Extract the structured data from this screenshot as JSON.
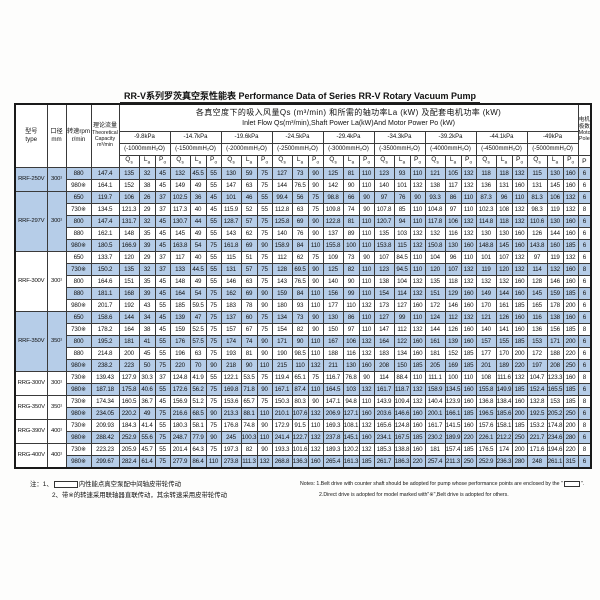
{
  "title": "RR-V系列罗茨真空泵性能表  Performance Data of Series RR-V Rotary Vacuum Pump",
  "header": {
    "model_cn": "型号",
    "model_en": "type",
    "bore_cn": "口径",
    "bore_en": "mm",
    "speed_cn": "转速rpm",
    "speed_en": "r/min",
    "cap_cn": "理论流量",
    "cap_en1": "Theoretical",
    "cap_en2": "Capacity",
    "cap_en3": "m³/min",
    "big_cn": "各真空度下的吸入风量Qs (m³/min) 和所需的轴功率La (kW) 及配套电机功率 (kW)",
    "big_en": "Inlet Flow Qs(m³/min),Shaft Power La(kW)And Motor Power Po (kW)",
    "pole_cn1": "电机",
    "pole_cn2": "极数",
    "pole_en1": "Motor",
    "pole_en2": "Pole"
  },
  "sub": {
    "qs_main": "Q",
    "qs_sub": "s",
    "la_main": "L",
    "la_sub": "a",
    "po_main": "P",
    "po_sub": "o",
    "p": "P"
  },
  "pressures": [
    {
      "kpa": "-9.8kPa",
      "mm": "(-1000mmH₂O)"
    },
    {
      "kpa": "-14.7kPa",
      "mm": "(-1500mmH₂O)"
    },
    {
      "kpa": "-19.6kPa",
      "mm": "(-2000mmH₂O)"
    },
    {
      "kpa": "-24.5kPa",
      "mm": "(-2500mmH₂O)"
    },
    {
      "kpa": "-29.4kPa",
      "mm": "(-3000mmH₂O)"
    },
    {
      "kpa": "-34.3kPa",
      "mm": "(-3500mmH₂O)"
    },
    {
      "kpa": "-39.2kPa",
      "mm": "(-4000mmH₂O)"
    },
    {
      "kpa": "-44.1kPa",
      "mm": "(-4500mmH₂O)"
    },
    {
      "kpa": "-49kPa",
      "mm": "(-5000mmH₂O)"
    }
  ],
  "groups": [
    {
      "model": "RRF-250V",
      "bore": "300¹",
      "rows": [
        {
          "speed": "880",
          "cap": "147.4",
          "c": [
            "135",
            "32",
            "45",
            "132",
            "45.5",
            "55",
            "130",
            "59",
            "75",
            "127",
            "73",
            "90",
            "125",
            "81",
            "110",
            "123",
            "93",
            "110",
            "121",
            "105",
            "132",
            "118",
            "118",
            "132",
            "115",
            "130",
            "160"
          ],
          "p": "6"
        },
        {
          "speed": "980※",
          "cap": "164.1",
          "c": [
            "152",
            "38",
            "45",
            "149",
            "49",
            "55",
            "147",
            "63",
            "75",
            "144",
            "76.5",
            "90",
            "142",
            "90",
            "110",
            "140",
            "101",
            "132",
            "138",
            "117",
            "132",
            "136",
            "131",
            "160",
            "131",
            "145",
            "160"
          ],
          "p": "6"
        }
      ]
    },
    {
      "model": "RRF-297V",
      "bore": "300¹",
      "rows": [
        {
          "speed": "650",
          "cap": "119.7",
          "c": [
            "106",
            "26",
            "37",
            "102.5",
            "36",
            "45",
            "101",
            "46",
            "55",
            "99.4",
            "56",
            "75",
            "98.8",
            "66",
            "90",
            "97",
            "76",
            "90",
            "93.3",
            "86",
            "110",
            "87.3",
            "96",
            "110",
            "81.3",
            "106",
            "132"
          ],
          "p": "6"
        },
        {
          "speed": "730※",
          "cap": "134.5",
          "c": [
            "121.3",
            "29",
            "37",
            "117.3",
            "40",
            "45",
            "115.9",
            "52",
            "55",
            "112.8",
            "63",
            "75",
            "109.8",
            "74",
            "90",
            "107.8",
            "85",
            "110",
            "104.8",
            "97",
            "110",
            "102.3",
            "108",
            "132",
            "98.3",
            "119",
            "132"
          ],
          "p": "8"
        },
        {
          "speed": "800",
          "cap": "147.4",
          "c": [
            "131.7",
            "32",
            "45",
            "130.7",
            "44",
            "55",
            "128.7",
            "57",
            "75",
            "125.8",
            "69",
            "90",
            "122.8",
            "81",
            "110",
            "120.7",
            "94",
            "110",
            "117.8",
            "106",
            "132",
            "114.8",
            "118",
            "132",
            "110.6",
            "130",
            "160"
          ],
          "p": "6"
        },
        {
          "speed": "880",
          "cap": "162.1",
          "c": [
            "148",
            "35",
            "45",
            "145",
            "49",
            "55",
            "143",
            "62",
            "75",
            "140",
            "76",
            "90",
            "137",
            "89",
            "110",
            "135",
            "103",
            "132",
            "132",
            "116",
            "132",
            "130",
            "130",
            "160",
            "126",
            "144",
            "160"
          ],
          "p": "6"
        },
        {
          "speed": "980※",
          "cap": "180.5",
          "c": [
            "166.9",
            "39",
            "45",
            "163.8",
            "54",
            "75",
            "161.8",
            "69",
            "90",
            "158.9",
            "84",
            "110",
            "155.8",
            "100",
            "110",
            "153.8",
            "115",
            "132",
            "150.8",
            "130",
            "160",
            "148.8",
            "145",
            "160",
            "143.8",
            "160",
            "185"
          ],
          "p": "6"
        }
      ]
    },
    {
      "model": "RRF-300V",
      "bore": "300¹",
      "rows": [
        {
          "speed": "650",
          "cap": "133.7",
          "c": [
            "120",
            "29",
            "37",
            "117",
            "40",
            "55",
            "115",
            "51",
            "75",
            "112",
            "62",
            "75",
            "109",
            "73",
            "90",
            "107",
            "84.5",
            "110",
            "104",
            "96",
            "110",
            "101",
            "107",
            "132",
            "97",
            "119",
            "132"
          ],
          "p": "6"
        },
        {
          "speed": "730※",
          "cap": "150.2",
          "c": [
            "135",
            "32",
            "37",
            "133",
            "44.5",
            "55",
            "131",
            "57",
            "75",
            "128",
            "69.5",
            "90",
            "125",
            "82",
            "110",
            "123",
            "94.5",
            "110",
            "120",
            "107",
            "132",
            "119",
            "120",
            "132",
            "114",
            "132",
            "160"
          ],
          "p": "8"
        },
        {
          "speed": "800",
          "cap": "164.6",
          "c": [
            "151",
            "35",
            "45",
            "148",
            "49",
            "55",
            "146",
            "63",
            "75",
            "143",
            "76.5",
            "90",
            "140",
            "90",
            "110",
            "138",
            "104",
            "132",
            "135",
            "118",
            "132",
            "132",
            "132",
            "160",
            "128",
            "146",
            "160"
          ],
          "p": "6"
        },
        {
          "speed": "880",
          "cap": "181.1",
          "c": [
            "168",
            "39",
            "45",
            "164",
            "54",
            "75",
            "162",
            "69",
            "90",
            "159",
            "84",
            "110",
            "156",
            "99",
            "110",
            "154",
            "114",
            "132",
            "151",
            "129",
            "160",
            "149",
            "144",
            "160",
            "145",
            "159",
            "185"
          ],
          "p": "6"
        },
        {
          "speed": "980※",
          "cap": "201.7",
          "c": [
            "192",
            "43",
            "55",
            "185",
            "59.5",
            "75",
            "183",
            "78",
            "90",
            "180",
            "93",
            "110",
            "177",
            "110",
            "132",
            "173",
            "127",
            "160",
            "172",
            "146",
            "160",
            "170",
            "161",
            "185",
            "165",
            "178",
            "200"
          ],
          "p": "6"
        }
      ]
    },
    {
      "model": "RRF-350V",
      "bore": "350¹",
      "rows": [
        {
          "speed": "650",
          "cap": "158.6",
          "c": [
            "144",
            "34",
            "45",
            "139",
            "47",
            "75",
            "137",
            "60",
            "75",
            "134",
            "73",
            "90",
            "130",
            "86",
            "110",
            "127",
            "99",
            "110",
            "124",
            "112",
            "132",
            "121",
            "126",
            "160",
            "116",
            "138",
            "160"
          ],
          "p": "6"
        },
        {
          "speed": "730※",
          "cap": "178.2",
          "c": [
            "164",
            "38",
            "45",
            "159",
            "52.5",
            "75",
            "157",
            "67",
            "75",
            "154",
            "82",
            "90",
            "150",
            "97",
            "110",
            "147",
            "112",
            "132",
            "144",
            "126",
            "160",
            "140",
            "141",
            "160",
            "136",
            "156",
            "185"
          ],
          "p": "8"
        },
        {
          "speed": "800",
          "cap": "195.2",
          "c": [
            "181",
            "41",
            "55",
            "176",
            "57.5",
            "75",
            "174",
            "74",
            "90",
            "171",
            "90",
            "110",
            "167",
            "106",
            "132",
            "164",
            "122",
            "160",
            "161",
            "139",
            "160",
            "157",
            "155",
            "185",
            "153",
            "171",
            "200"
          ],
          "p": "6"
        },
        {
          "speed": "880",
          "cap": "214.8",
          "c": [
            "200",
            "45",
            "55",
            "196",
            "63",
            "75",
            "193",
            "81",
            "90",
            "190",
            "98.5",
            "110",
            "188",
            "116",
            "132",
            "183",
            "134",
            "160",
            "181",
            "152",
            "185",
            "177",
            "170",
            "200",
            "172",
            "188",
            "220"
          ],
          "p": "6"
        },
        {
          "speed": "980※",
          "cap": "238.2",
          "c": [
            "223",
            "50",
            "75",
            "220",
            "70",
            "90",
            "218",
            "90",
            "110",
            "215",
            "110",
            "132",
            "211",
            "130",
            "160",
            "208",
            "150",
            "185",
            "205",
            "169",
            "185",
            "201",
            "189",
            "220",
            "197",
            "208",
            "250"
          ],
          "p": "6"
        }
      ]
    },
    {
      "model": "RRG-300V",
      "bore": "300¹",
      "rows": [
        {
          "speed": "730※",
          "cap": "139.43",
          "c": [
            "127.9",
            "30.3",
            "37",
            "124.8",
            "41.9",
            "55",
            "122.1",
            "53.5",
            "75",
            "119.4",
            "65.1",
            "75",
            "116.7",
            "76.8",
            "90",
            "114",
            "88.4",
            "110",
            "111.1",
            "100",
            "110",
            "108",
            "111.6",
            "132",
            "104.7",
            "123.3",
            "160"
          ],
          "p": "8"
        },
        {
          "speed": "980※",
          "cap": "187.18",
          "c": [
            "175.8",
            "40.6",
            "55",
            "172.6",
            "56.2",
            "75",
            "169.8",
            "71.8",
            "90",
            "167.1",
            "87.4",
            "110",
            "164.5",
            "103",
            "132",
            "161.7",
            "118.7",
            "132",
            "158.9",
            "134.5",
            "160",
            "155.8",
            "149.9",
            "185",
            "152.4",
            "165.5",
            "185"
          ],
          "p": "6"
        }
      ]
    },
    {
      "model": "RRG-350V",
      "bore": "350¹",
      "rows": [
        {
          "speed": "730※",
          "cap": "174.34",
          "c": [
            "160.5",
            "36.7",
            "45",
            "156.9",
            "51.2",
            "75",
            "153.6",
            "65.7",
            "75",
            "150.3",
            "80.3",
            "90",
            "147.1",
            "94.8",
            "110",
            "143.9",
            "109.4",
            "132",
            "140.4",
            "123.9",
            "160",
            "136.8",
            "138.4",
            "160",
            "132.8",
            "153",
            "185"
          ],
          "p": "8"
        },
        {
          "speed": "980※",
          "cap": "234.05",
          "c": [
            "220.2",
            "49",
            "75",
            "216.6",
            "68.5",
            "90",
            "213.3",
            "88.1",
            "110",
            "210.1",
            "107.6",
            "132",
            "206.9",
            "127.1",
            "160",
            "203.6",
            "146.6",
            "160",
            "200.1",
            "166.1",
            "185",
            "196.5",
            "185.6",
            "200",
            "192.5",
            "205.2",
            "250"
          ],
          "p": "6"
        }
      ]
    },
    {
      "model": "RRG-390V",
      "bore": "400¹",
      "rows": [
        {
          "speed": "730※",
          "cap": "209.93",
          "c": [
            "184.3",
            "41.4",
            "55",
            "180.3",
            "58.1",
            "75",
            "176.8",
            "74.8",
            "90",
            "172.9",
            "91.5",
            "110",
            "169.3",
            "108.1",
            "132",
            "165.6",
            "124.8",
            "160",
            "161.7",
            "141.5",
            "160",
            "157.6",
            "158.1",
            "185",
            "153.2",
            "174.8",
            "200"
          ],
          "p": "8"
        },
        {
          "speed": "980※",
          "cap": "288.42",
          "c": [
            "252.9",
            "55.6",
            "75",
            "248.7",
            "77.9",
            "90",
            "245",
            "100.3",
            "110",
            "241.4",
            "122.7",
            "132",
            "237.8",
            "145.1",
            "160",
            "234.1",
            "167.5",
            "185",
            "230.2",
            "189.9",
            "220",
            "226.1",
            "212.2",
            "250",
            "221.7",
            "234.6",
            "280"
          ],
          "p": "6"
        }
      ]
    },
    {
      "model": "RRG-400V",
      "bore": "400¹",
      "rows": [
        {
          "speed": "730※",
          "cap": "223.23",
          "c": [
            "205.9",
            "45.7",
            "55",
            "201.4",
            "64.3",
            "75",
            "197.3",
            "82",
            "90",
            "193.3",
            "101.6",
            "132",
            "189.3",
            "120.2",
            "132",
            "185.3",
            "138.8",
            "160",
            "181",
            "157.4",
            "185",
            "176.5",
            "174",
            "200",
            "171.6",
            "194.6",
            "220"
          ],
          "p": "8"
        },
        {
          "speed": "980※",
          "cap": "299.67",
          "c": [
            "282.4",
            "61.4",
            "75",
            "277.9",
            "86.4",
            "110",
            "273.8",
            "111.3",
            "132",
            "268.8",
            "136.3",
            "160",
            "265.4",
            "161.3",
            "185",
            "261.7",
            "186.3",
            "220",
            "257.4",
            "211.3",
            "250",
            "252.9",
            "236.3",
            "280",
            "248",
            "261.1",
            "315"
          ],
          "p": "6"
        }
      ]
    }
  ],
  "notes": {
    "cn1_prefix": "注：1、",
    "cn1_suffix": "内性能点真空泵配中间轴皮带轮传动",
    "cn2": "2、带※的转速采用联轴器直联传动，其余转速采用皮带轮传动",
    "en1_prefix": "Notes: 1.Belt drive with counter shaft should be adopted for pump whose performance points are enclosed by the \"",
    "en1_suffix": "\".",
    "en2": "2.Direct drive is adopted for model marked with\"※\",Belt drive is adopted for others."
  }
}
